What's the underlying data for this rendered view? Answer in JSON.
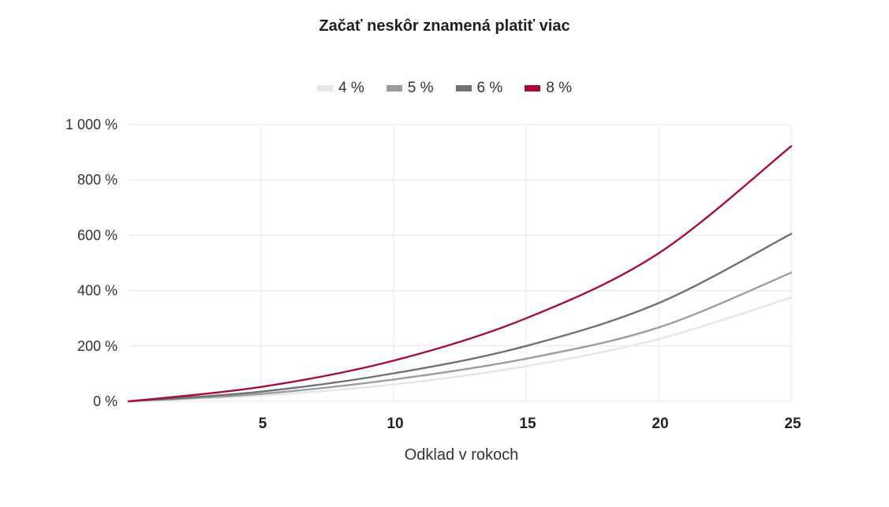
{
  "chart_data": {
    "type": "line",
    "title": "Začať neskôr znamená platiť viac",
    "xlabel": "Odklad v rokoch",
    "ylabel": "",
    "xlim": [
      0,
      25
    ],
    "ylim": [
      0,
      1000
    ],
    "x_ticks": [
      {
        "value": 5,
        "label": "5"
      },
      {
        "value": 10,
        "label": "10"
      },
      {
        "value": 15,
        "label": "15"
      },
      {
        "value": 20,
        "label": "20"
      },
      {
        "value": 25,
        "label": "25"
      }
    ],
    "y_ticks": [
      {
        "value": 0,
        "label": "0 %"
      },
      {
        "value": 200,
        "label": "200 %"
      },
      {
        "value": 400,
        "label": "400 %"
      },
      {
        "value": 600,
        "label": "600 %"
      },
      {
        "value": 800,
        "label": "800 %"
      },
      {
        "value": 1000,
        "label": "1 000 %"
      }
    ],
    "grid": true,
    "legend_position": "top-center",
    "x": [
      0,
      5,
      10,
      15,
      20,
      25
    ],
    "series": [
      {
        "name": "4 %",
        "color": "#e6e6e6",
        "values": [
          0,
          21,
          61,
          127,
          225,
          375
        ]
      },
      {
        "name": "5 %",
        "color": "#9a9ea2",
        "values": [
          0,
          27,
          79,
          154,
          267,
          465
        ]
      },
      {
        "name": "6 %",
        "color": "#6c7378",
        "values": [
          0,
          35,
          101,
          200,
          355,
          605
        ]
      },
      {
        "name": "8 %",
        "color": "#a50d35",
        "values": [
          0,
          52,
          147,
          300,
          535,
          922
        ]
      }
    ]
  }
}
